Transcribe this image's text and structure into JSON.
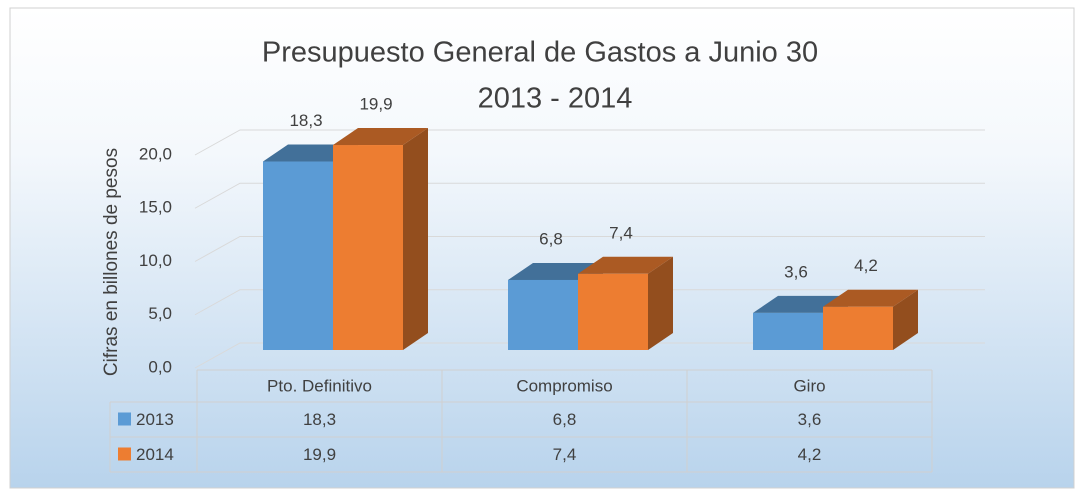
{
  "chart_data": {
    "type": "bar3d",
    "title": "Presupuesto General de Gastos a Junio 30",
    "subtitle": "2013 - 2014",
    "ylabel": "Cifras en billones de pesos",
    "categories": [
      "Pto. Definitivo",
      "Compromiso",
      "Giro"
    ],
    "series": [
      {
        "name": "2013",
        "color": "#5b9bd5",
        "values": [
          18.3,
          6.8,
          3.6
        ],
        "value_labels": [
          "18,3",
          "6,8",
          "3,6"
        ]
      },
      {
        "name": "2014",
        "color": "#ed7d31",
        "values": [
          19.9,
          7.4,
          4.2
        ],
        "value_labels": [
          "19,9",
          "7,4",
          "4,2"
        ]
      }
    ],
    "ylim": [
      0,
      20
    ],
    "yticks": [
      {
        "value": 0,
        "label": "0,0"
      },
      {
        "value": 5,
        "label": "5,0"
      },
      {
        "value": 10,
        "label": "10,0"
      },
      {
        "value": 15,
        "label": "15,0"
      },
      {
        "value": 20,
        "label": "20,0"
      }
    ],
    "grid": true,
    "data_table": true
  }
}
